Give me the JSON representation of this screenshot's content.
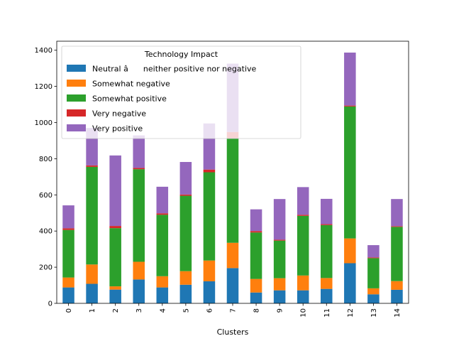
{
  "chart_data": {
    "type": "bar",
    "stacked": true,
    "categories": [
      "0",
      "1",
      "2",
      "3",
      "4",
      "5",
      "6",
      "7",
      "8",
      "9",
      "10",
      "11",
      "12",
      "13",
      "14"
    ],
    "xlabel": "Clusters",
    "ylabel": "",
    "ylim": [
      0,
      1450
    ],
    "yticks": [
      0,
      200,
      400,
      600,
      800,
      1000,
      1200,
      1400
    ],
    "grid": false,
    "legend": {
      "title": "Technology Impact",
      "placement": "upper-left"
    },
    "series": [
      {
        "name": "Neutral â neither positive nor negative",
        "color": "#1f77b4",
        "values": [
          88,
          108,
          76,
          132,
          88,
          103,
          122,
          195,
          60,
          72,
          72,
          80,
          222,
          50,
          75
        ]
      },
      {
        "name": "Somewhat negative",
        "color": "#ff7f0e",
        "values": [
          55,
          107,
          18,
          98,
          62,
          75,
          115,
          140,
          75,
          67,
          82,
          60,
          137,
          33,
          48
        ]
      },
      {
        "name": "Somewhat positive",
        "color": "#2ca02c",
        "values": [
          263,
          540,
          322,
          512,
          340,
          417,
          488,
          578,
          257,
          208,
          330,
          293,
          730,
          167,
          300
        ]
      },
      {
        "name": "Very negative",
        "color": "#d62728",
        "values": [
          9,
          8,
          12,
          7,
          8,
          7,
          15,
          35,
          8,
          5,
          6,
          5,
          5,
          4,
          4
        ]
      },
      {
        "name": "Very positive",
        "color": "#9467bd",
        "values": [
          127,
          207,
          390,
          180,
          147,
          180,
          255,
          378,
          120,
          225,
          153,
          140,
          293,
          68,
          150
        ]
      }
    ]
  }
}
